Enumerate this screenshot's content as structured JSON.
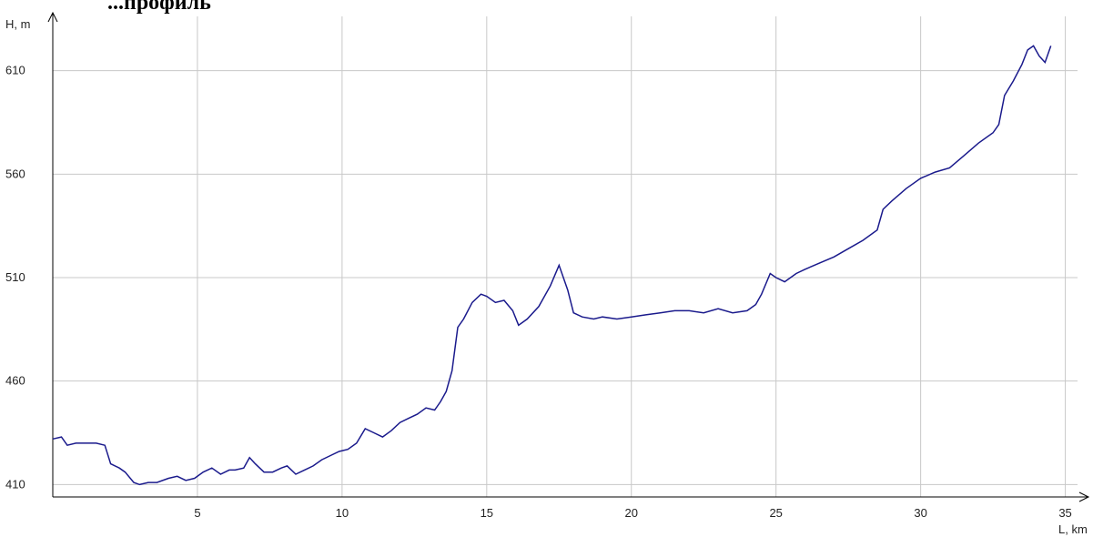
{
  "chart_data": {
    "type": "line",
    "title": "...профиль",
    "xlabel": "L, km",
    "ylabel": "H, m",
    "xlim": [
      0,
      35.8
    ],
    "ylim": [
      404,
      638
    ],
    "grid": true,
    "x_ticks": [
      5,
      10,
      15,
      20,
      25,
      30,
      35
    ],
    "y_ticks": [
      410,
      460,
      510,
      560,
      610
    ],
    "line_color": "#1a1a8c",
    "series": [
      {
        "x": [
          0,
          0.3,
          0.5,
          0.8,
          1,
          1.5,
          1.8,
          2.0,
          2.3,
          2.5,
          2.8,
          3.0,
          3.3,
          3.6,
          4.0,
          4.3,
          4.6,
          4.9,
          5.2,
          5.5,
          5.8,
          6.1,
          6.3,
          6.6,
          6.8,
          7.0,
          7.3,
          7.6,
          7.9,
          8.1,
          8.4,
          8.7,
          9.0,
          9.3,
          9.6,
          9.9,
          10.2,
          10.5,
          10.8,
          11.1,
          11.4,
          11.7,
          12.0,
          12.3,
          12.6,
          12.9,
          13.2,
          13.4,
          13.6,
          13.8,
          14.0,
          14.2,
          14.5,
          14.8,
          15.0,
          15.3,
          15.6,
          15.9,
          16.1,
          16.4,
          16.8,
          17.2,
          17.5,
          17.8,
          18.0,
          18.3,
          18.7,
          19.0,
          19.5,
          20.0,
          20.5,
          21.0,
          21.5,
          22.0,
          22.5,
          23.0,
          23.5,
          24.0,
          24.3,
          24.5,
          24.8,
          25.0,
          25.3,
          25.7,
          26.0,
          26.5,
          27.0,
          27.5,
          28.0,
          28.5,
          28.7,
          29.0,
          29.5,
          30.0,
          30.5,
          31.0,
          31.5,
          32.0,
          32.5,
          32.7,
          32.9,
          33.2,
          33.5,
          33.7,
          33.9,
          34.1,
          34.3,
          34.5
        ],
        "y": [
          432,
          433,
          429,
          430,
          430,
          430,
          429,
          420,
          418,
          416,
          411,
          410,
          411,
          411,
          413,
          414,
          412,
          413,
          416,
          418,
          415,
          417,
          417,
          418,
          423,
          420,
          416,
          416,
          418,
          419,
          415,
          417,
          419,
          422,
          424,
          426,
          427,
          430,
          437,
          435,
          433,
          436,
          440,
          442,
          444,
          447,
          446,
          450,
          455,
          465,
          486,
          490,
          498,
          502,
          501,
          498,
          499,
          494,
          487,
          490,
          496,
          506,
          516,
          504,
          493,
          491,
          490,
          491,
          490,
          491,
          492,
          493,
          494,
          494,
          493,
          495,
          493,
          494,
          497,
          502,
          512,
          510,
          508,
          512,
          514,
          517,
          520,
          524,
          528,
          533,
          543,
          547,
          553,
          558,
          561,
          563,
          569,
          575,
          580,
          584,
          598,
          605,
          613,
          620,
          622,
          617,
          614,
          622
        ]
      }
    ]
  }
}
